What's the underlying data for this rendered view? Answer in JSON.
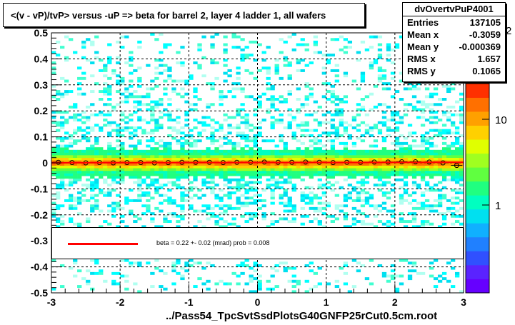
{
  "title": "<(v - vP)/tvP> versus  -uP => beta for barrel 2, layer 4 ladder 1, all wafers",
  "stats": {
    "name": "dvOvertvPuP4001",
    "rows": [
      {
        "label": "Entries",
        "value": "137105"
      },
      {
        "label": "Mean x",
        "value": "-0.3059"
      },
      {
        "label": "Mean y",
        "value": "-0.000369"
      },
      {
        "label": "RMS x",
        "value": "1.657"
      },
      {
        "label": "RMS y",
        "value": "0.1065"
      }
    ]
  },
  "legend": {
    "text": "beta =     0.22 +-  0.02 (mrad) prob = 0.008",
    "line_color": "#ff0000"
  },
  "xlabel_text": "../Pass54_TpcSvtSsdPlotsG40GNFP25rCut0.5cm.root",
  "palette": {
    "labels": [
      "10",
      "1"
    ],
    "exponent_hint": "2",
    "colors": [
      "#6600ff",
      "#5a23ff",
      "#3050ff",
      "#2080ff",
      "#10b0ff",
      "#00e0f0",
      "#00ffc0",
      "#20ff80",
      "#60ff40",
      "#a0ff20",
      "#e0ff00",
      "#ffd000",
      "#ffa000",
      "#ff7000",
      "#ff3000"
    ]
  },
  "chart_data": {
    "type": "heatmap",
    "title": "<(v - vP)/tvP> versus  -uP => beta for barrel 2, layer 4 ladder 1, all wafers",
    "xlabel": "../Pass54_TpcSvtSsdPlotsG40GNFP25rCut0.5cm.root",
    "ylabel": "",
    "xlim": [
      -3,
      3
    ],
    "ylim": [
      -0.5,
      0.5
    ],
    "x_ticks": [
      "-3",
      "-2",
      "-1",
      "0",
      "1",
      "2",
      "3"
    ],
    "y_ticks": [
      "-0.5",
      "-0.4",
      "-0.3",
      "-0.2",
      "-0.1",
      "0",
      "0.1",
      "0.2",
      "0.3",
      "0.4",
      "0.5"
    ],
    "z_scale": "log",
    "grid": true,
    "profile_points": {
      "x": [
        -2.9,
        -2.7,
        -2.5,
        -2.3,
        -2.1,
        -1.9,
        -1.7,
        -1.5,
        -1.3,
        -1.1,
        -0.9,
        -0.7,
        -0.5,
        -0.3,
        -0.1,
        0.1,
        0.3,
        0.5,
        0.7,
        0.9,
        1.1,
        1.3,
        1.5,
        1.7,
        1.9,
        2.1,
        2.3,
        2.5,
        2.7,
        2.9
      ],
      "y": [
        0.002,
        0.001,
        0.0,
        0.001,
        0.0,
        0.001,
        0.001,
        0.0,
        0.001,
        0.002,
        0.002,
        0.002,
        0.001,
        0.002,
        0.002,
        0.003,
        0.002,
        0.002,
        0.003,
        0.002,
        0.001,
        0.002,
        0.002,
        0.003,
        0.003,
        0.004,
        0.004,
        0.003,
        0.0,
        -0.01
      ]
    },
    "fit_line": {
      "x": [
        -3,
        3
      ],
      "y": [
        0.0,
        0.002
      ]
    }
  }
}
